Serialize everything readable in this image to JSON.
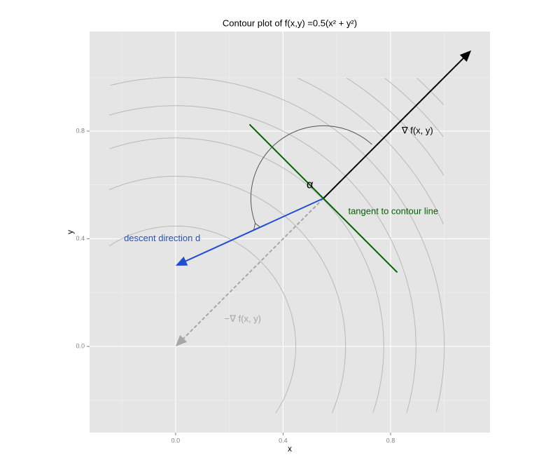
{
  "chart_data": {
    "type": "contour",
    "title": "Contour plot of f(x,y) =0.5(x² + y²)",
    "x_label": "x",
    "y_label": "y",
    "xlim": [
      -0.32,
      1.17
    ],
    "ylim": [
      -0.32,
      1.17
    ],
    "xticks": [
      {
        "value": 0,
        "label": "0.0"
      },
      0.4,
      0.8
    ],
    "yticks": [
      {
        "value": 0,
        "label": "0.0"
      },
      0.4,
      0.8
    ],
    "grid": true,
    "domain": [
      -0.25,
      1.0
    ],
    "contour_levels": [
      0.1,
      0.2,
      0.3,
      0.4,
      0.5,
      0.6,
      0.7,
      0.8,
      0.9,
      1.0
    ],
    "contour_color": "#b8b8b8",
    "segments": [
      {
        "from": [
          0.55,
          0.55
        ],
        "to": [
          1.1,
          1.1
        ],
        "color": "#000000",
        "arrow": true,
        "dashed": false
      },
      {
        "from": [
          0.55,
          0.55
        ],
        "to": [
          0,
          0
        ],
        "color": "#a6a6a6",
        "arrow": true,
        "dashed": true
      },
      {
        "from": [
          0.55,
          0.55
        ],
        "to": [
          0,
          0.3
        ],
        "color": "#1f4fd1",
        "arrow": true,
        "dashed": false
      },
      {
        "from": [
          0.275,
          0.825
        ],
        "to": [
          0.825,
          0.275
        ],
        "color": "#006400",
        "arrow": false,
        "dashed": false
      }
    ],
    "arc": {
      "center": [
        0.55,
        0.55
      ],
      "radius": 0.27,
      "start_deg": 48,
      "end_deg": 200,
      "color": "#555555"
    },
    "labels": [
      {
        "text": "∇ f(x, y)",
        "x": 0.9,
        "y": 0.8,
        "color": "#000000"
      },
      {
        "text": "α",
        "x": 0.5,
        "y": 0.6,
        "color": "#000000"
      },
      {
        "text": "tangent to contour line",
        "x": 0.81,
        "y": 0.5,
        "color": "#006400"
      },
      {
        "text": "descent direction d",
        "x": -0.05,
        "y": 0.4,
        "color": "#1f4fd1"
      },
      {
        "text": "−∇ f(x, y)",
        "x": 0.25,
        "y": 0.1,
        "color": "#a6a6a6"
      }
    ]
  }
}
